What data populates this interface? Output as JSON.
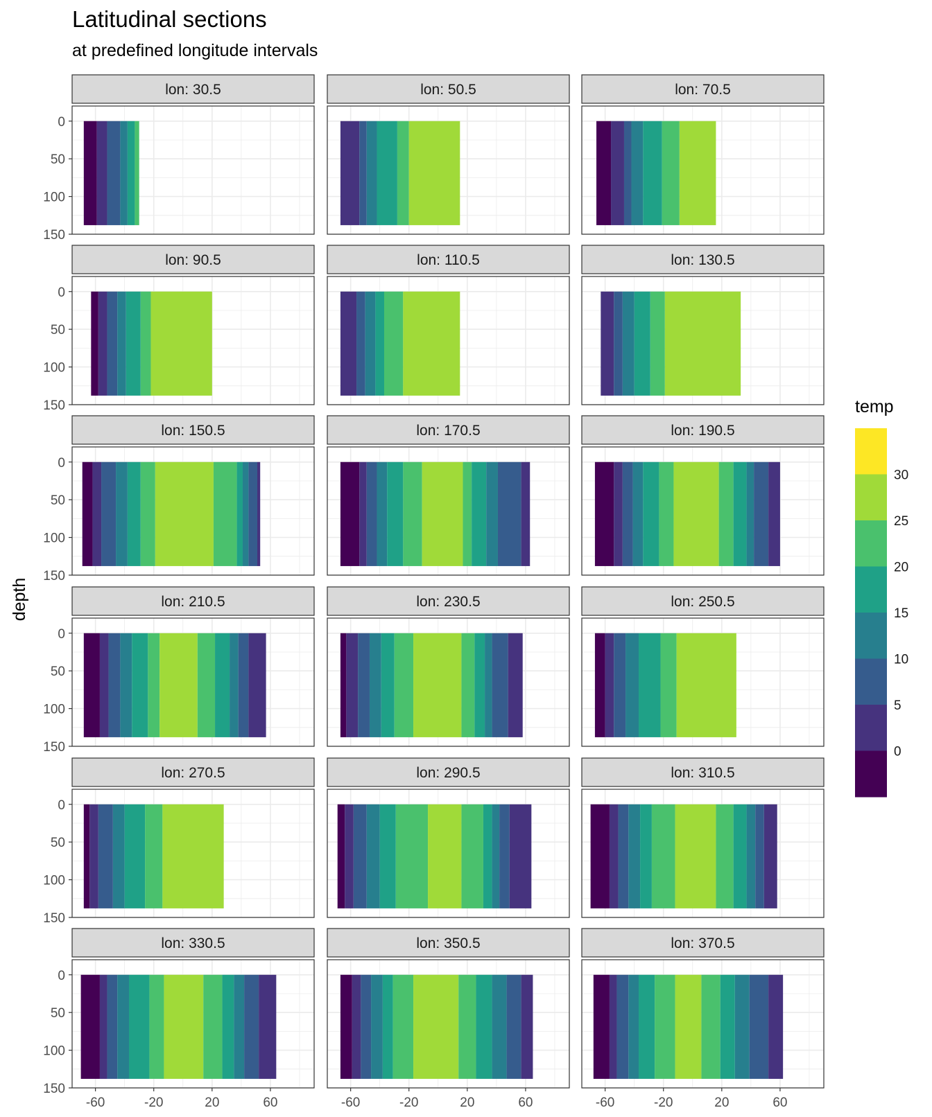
{
  "chart_data": {
    "type": "heatmap",
    "title": "Latitudinal sections",
    "subtitle": "at predefined longitude intervals",
    "xlabel": "",
    "ylabel": "depth",
    "x_ticks": [
      -60,
      -20,
      20,
      60
    ],
    "y_ticks": [
      0,
      50,
      100,
      150
    ],
    "xlim": [
      -76,
      90
    ],
    "ylim": [
      150,
      -20
    ],
    "y_reversed": true,
    "grid": true,
    "legend_title": "temp",
    "legend_position": "right",
    "legend_breaks": [
      0,
      5,
      10,
      15,
      20,
      25,
      30
    ],
    "colors": [
      "#440154",
      "#46337e",
      "#365c8d",
      "#277f8e",
      "#1fa187",
      "#4ac16d",
      "#a0da39",
      "#fde725"
    ],
    "bins": [
      {
        "range": "< 0",
        "color": "#440154"
      },
      {
        "range": "0-5",
        "color": "#46337e"
      },
      {
        "range": "5-10",
        "color": "#365c8d"
      },
      {
        "range": "10-15",
        "color": "#277f8e"
      },
      {
        "range": "15-20",
        "color": "#1fa187"
      },
      {
        "range": "20-25",
        "color": "#4ac16d"
      },
      {
        "range": "25-30",
        "color": "#a0da39"
      },
      {
        "range": "> 30",
        "color": "#fde725"
      }
    ],
    "panels": [
      {
        "label": "lon: 30.5",
        "lat_range": [
          -68,
          -30
        ],
        "depth_max": 138,
        "bands": [
          [
            0,
            -68
          ],
          [
            1,
            -59
          ],
          [
            2,
            -52
          ],
          [
            3,
            -43
          ],
          [
            4,
            -38
          ],
          [
            5,
            -33
          ]
        ]
      },
      {
        "label": "lon: 50.5",
        "lat_range": [
          -67,
          15
        ],
        "depth_max": 138,
        "bands": [
          [
            1,
            -67
          ],
          [
            2,
            -54
          ],
          [
            3,
            -49
          ],
          [
            4,
            -42
          ],
          [
            5,
            -28
          ],
          [
            6,
            -20
          ]
        ]
      },
      {
        "label": "lon: 70.5",
        "lat_range": [
          -66,
          16
        ],
        "depth_max": 138,
        "bands": [
          [
            0,
            -66
          ],
          [
            1,
            -56
          ],
          [
            2,
            -47
          ],
          [
            3,
            -42
          ],
          [
            4,
            -34
          ],
          [
            5,
            -21
          ],
          [
            6,
            -9
          ]
        ]
      },
      {
        "label": "lon: 90.5",
        "lat_range": [
          -63,
          20
        ],
        "depth_max": 138,
        "bands": [
          [
            0,
            -63
          ],
          [
            1,
            -58
          ],
          [
            2,
            -52
          ],
          [
            3,
            -45
          ],
          [
            4,
            -39
          ],
          [
            5,
            -29
          ],
          [
            6,
            -22
          ]
        ]
      },
      {
        "label": "lon: 110.5",
        "lat_range": [
          -67,
          15
        ],
        "depth_max": 138,
        "bands": [
          [
            1,
            -67
          ],
          [
            2,
            -56
          ],
          [
            3,
            -50
          ],
          [
            4,
            -43
          ],
          [
            5,
            -37
          ],
          [
            6,
            -24
          ]
        ]
      },
      {
        "label": "lon: 130.5",
        "lat_range": [
          -63,
          33
        ],
        "depth_max": 138,
        "bands": [
          [
            1,
            -63
          ],
          [
            2,
            -54
          ],
          [
            3,
            -48
          ],
          [
            4,
            -40
          ],
          [
            5,
            -29
          ],
          [
            6,
            -19
          ]
        ]
      },
      {
        "label": "lon: 150.5",
        "lat_range": [
          -69,
          53
        ],
        "depth_max": 138,
        "bands": [
          [
            0,
            -69
          ],
          [
            1,
            -62
          ],
          [
            2,
            -56
          ],
          [
            3,
            -46
          ],
          [
            4,
            -38
          ],
          [
            5,
            -29
          ],
          [
            6,
            -19
          ],
          [
            5,
            21
          ],
          [
            4,
            37
          ],
          [
            3,
            41
          ],
          [
            2,
            45
          ],
          [
            1,
            51
          ]
        ]
      },
      {
        "label": "lon: 170.5",
        "lat_range": [
          -67,
          63
        ],
        "depth_max": 138,
        "bands": [
          [
            0,
            -67
          ],
          [
            1,
            -54
          ],
          [
            2,
            -49
          ],
          [
            3,
            -42
          ],
          [
            4,
            -35
          ],
          [
            5,
            -24
          ],
          [
            6,
            -11
          ],
          [
            5,
            17
          ],
          [
            4,
            23
          ],
          [
            3,
            33
          ],
          [
            2,
            41
          ],
          [
            1,
            57
          ]
        ]
      },
      {
        "label": "lon: 190.5",
        "lat_range": [
          -67,
          60
        ],
        "depth_max": 138,
        "bands": [
          [
            0,
            -67
          ],
          [
            1,
            -54
          ],
          [
            2,
            -48
          ],
          [
            3,
            -41
          ],
          [
            4,
            -34
          ],
          [
            5,
            -23
          ],
          [
            6,
            -13
          ],
          [
            5,
            18
          ],
          [
            4,
            28
          ],
          [
            3,
            37
          ],
          [
            2,
            42
          ],
          [
            1,
            52
          ]
        ]
      },
      {
        "label": "lon: 210.5",
        "lat_range": [
          -68,
          57
        ],
        "depth_max": 138,
        "bands": [
          [
            0,
            -68
          ],
          [
            1,
            -57
          ],
          [
            2,
            -51
          ],
          [
            3,
            -43
          ],
          [
            4,
            -35
          ],
          [
            5,
            -24
          ],
          [
            6,
            -16
          ],
          [
            5,
            10
          ],
          [
            4,
            22
          ],
          [
            3,
            32
          ],
          [
            2,
            38
          ],
          [
            1,
            45
          ]
        ]
      },
      {
        "label": "lon: 230.5",
        "lat_range": [
          -67,
          58
        ],
        "depth_max": 138,
        "bands": [
          [
            0,
            -67
          ],
          [
            1,
            -63
          ],
          [
            2,
            -55
          ],
          [
            3,
            -47
          ],
          [
            4,
            -39
          ],
          [
            5,
            -30
          ],
          [
            6,
            -17
          ],
          [
            5,
            16
          ],
          [
            4,
            25
          ],
          [
            3,
            32
          ],
          [
            2,
            37
          ],
          [
            1,
            48
          ]
        ]
      },
      {
        "label": "lon: 250.5",
        "lat_range": [
          -67,
          30
        ],
        "depth_max": 138,
        "bands": [
          [
            0,
            -67
          ],
          [
            1,
            -60
          ],
          [
            2,
            -54
          ],
          [
            3,
            -46
          ],
          [
            4,
            -37
          ],
          [
            5,
            -22
          ],
          [
            6,
            -11
          ]
        ]
      },
      {
        "label": "lon: 270.5",
        "lat_range": [
          -68,
          28
        ],
        "depth_max": 138,
        "bands": [
          [
            0,
            -68
          ],
          [
            1,
            -64
          ],
          [
            2,
            -58
          ],
          [
            3,
            -48
          ],
          [
            4,
            -40
          ],
          [
            5,
            -26
          ],
          [
            6,
            -14
          ]
        ]
      },
      {
        "label": "lon: 290.5",
        "lat_range": [
          -69,
          64
        ],
        "depth_max": 138,
        "bands": [
          [
            0,
            -69
          ],
          [
            1,
            -64
          ],
          [
            2,
            -58
          ],
          [
            3,
            -49
          ],
          [
            4,
            -40
          ],
          [
            5,
            -29
          ],
          [
            6,
            -7
          ],
          [
            5,
            16
          ],
          [
            4,
            31
          ],
          [
            3,
            37
          ],
          [
            2,
            42
          ],
          [
            1,
            49
          ]
        ]
      },
      {
        "label": "lon: 310.5",
        "lat_range": [
          -70,
          58
        ],
        "depth_max": 138,
        "bands": [
          [
            0,
            -70
          ],
          [
            1,
            -57
          ],
          [
            2,
            -51
          ],
          [
            3,
            -44
          ],
          [
            4,
            -36
          ],
          [
            5,
            -28
          ],
          [
            6,
            -12
          ],
          [
            5,
            16
          ],
          [
            4,
            28
          ],
          [
            3,
            37
          ],
          [
            2,
            43
          ],
          [
            1,
            49
          ]
        ]
      },
      {
        "label": "lon: 330.5",
        "lat_range": [
          -70,
          64
        ],
        "depth_max": 138,
        "bands": [
          [
            0,
            -70
          ],
          [
            1,
            -57
          ],
          [
            2,
            -52
          ],
          [
            3,
            -45
          ],
          [
            4,
            -37
          ],
          [
            5,
            -23
          ],
          [
            6,
            -13
          ],
          [
            5,
            14
          ],
          [
            4,
            27
          ],
          [
            3,
            35
          ],
          [
            2,
            42
          ],
          [
            1,
            52
          ]
        ]
      },
      {
        "label": "lon: 350.5",
        "lat_range": [
          -67,
          65
        ],
        "depth_max": 138,
        "bands": [
          [
            0,
            -67
          ],
          [
            1,
            -59
          ],
          [
            2,
            -53
          ],
          [
            3,
            -46
          ],
          [
            4,
            -38
          ],
          [
            5,
            -31
          ],
          [
            6,
            -17
          ],
          [
            5,
            14
          ],
          [
            4,
            26
          ],
          [
            3,
            37
          ],
          [
            2,
            47
          ],
          [
            1,
            57
          ]
        ]
      },
      {
        "label": "lon: 370.5",
        "lat_range": [
          -68,
          62
        ],
        "depth_max": 138,
        "bands": [
          [
            0,
            -68
          ],
          [
            1,
            -57
          ],
          [
            2,
            -52
          ],
          [
            3,
            -44
          ],
          [
            4,
            -37
          ],
          [
            5,
            -26
          ],
          [
            6,
            -12
          ],
          [
            5,
            6
          ],
          [
            4,
            19
          ],
          [
            3,
            29
          ],
          [
            2,
            39
          ],
          [
            1,
            52
          ]
        ]
      }
    ]
  }
}
